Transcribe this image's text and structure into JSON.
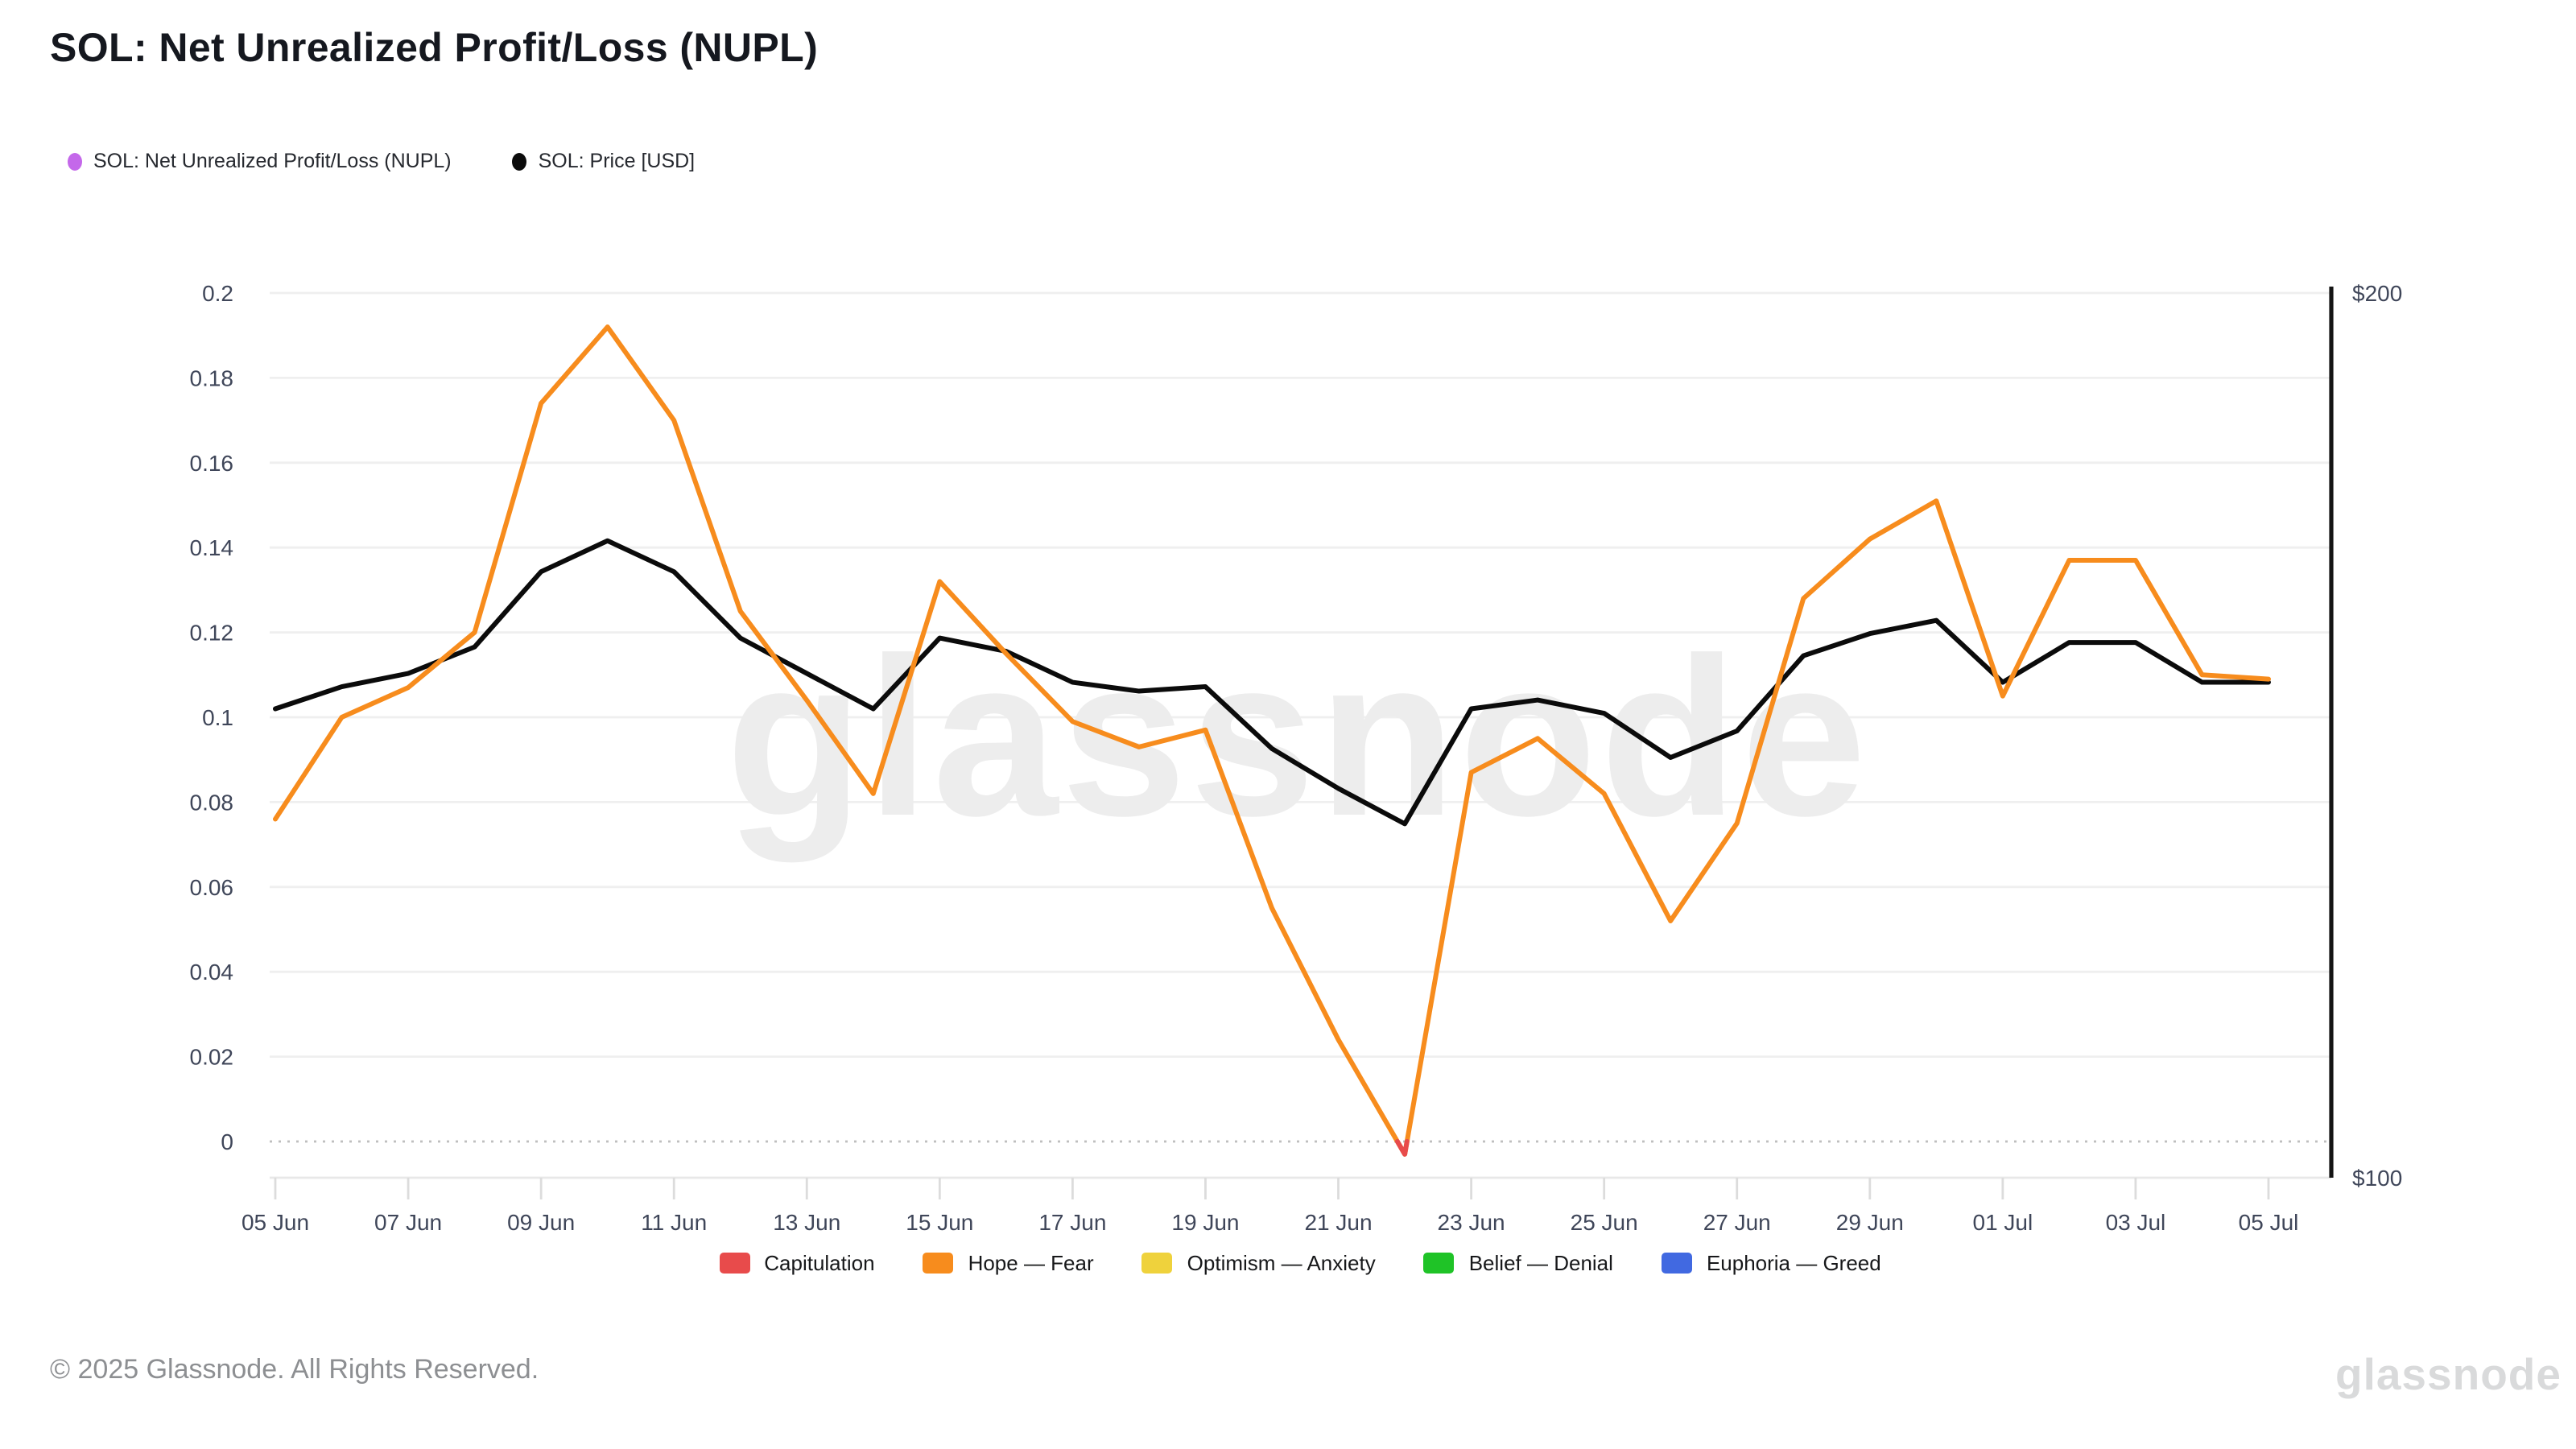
{
  "title": "SOL: Net Unrealized Profit/Loss (NUPL)",
  "top_legend": [
    {
      "label": "SOL: Net Unrealized Profit/Loss (NUPL)",
      "dot_color": "#c468ea"
    },
    {
      "label": "SOL: Price [USD]",
      "dot_color": "#0b0b0b"
    }
  ],
  "zone_legend": [
    {
      "label": "Capitulation",
      "color": "#e84b4b"
    },
    {
      "label": "Hope — Fear",
      "color": "#f78c1d"
    },
    {
      "label": "Optimism — Anxiety",
      "color": "#efd23c"
    },
    {
      "label": "Belief — Denial",
      "color": "#1fc327"
    },
    {
      "label": "Euphoria — Greed",
      "color": "#4169e1"
    }
  ],
  "footer": {
    "copyright": "© 2025 Glassnode. All Rights Reserved.",
    "brand": "glassnode"
  },
  "watermark": "glassnode",
  "chart_data": {
    "type": "line",
    "x": [
      "05 Jun",
      "06 Jun",
      "07 Jun",
      "08 Jun",
      "09 Jun",
      "10 Jun",
      "11 Jun",
      "12 Jun",
      "13 Jun",
      "14 Jun",
      "15 Jun",
      "16 Jun",
      "17 Jun",
      "18 Jun",
      "19 Jun",
      "20 Jun",
      "21 Jun",
      "22 Jun",
      "23 Jun",
      "24 Jun",
      "25 Jun",
      "26 Jun",
      "27 Jun",
      "28 Jun",
      "29 Jun",
      "30 Jun",
      "01 Jul",
      "02 Jul",
      "03 Jul",
      "04 Jul",
      "05 Jul"
    ],
    "x_tick_labels": [
      "05 Jun",
      "07 Jun",
      "09 Jun",
      "11 Jun",
      "13 Jun",
      "15 Jun",
      "17 Jun",
      "19 Jun",
      "21 Jun",
      "23 Jun",
      "25 Jun",
      "27 Jun",
      "29 Jun",
      "01 Jul",
      "03 Jul",
      "05 Jul"
    ],
    "left_axis": {
      "tick_labels": [
        "0.2",
        "0.18",
        "0.16",
        "0.14",
        "0.12",
        "0.1",
        "0.08",
        "0.06",
        "0.04",
        "0.02",
        "0"
      ],
      "tick_values": [
        0.2,
        0.18,
        0.16,
        0.14,
        0.12,
        0.1,
        0.08,
        0.06,
        0.04,
        0.02,
        0
      ],
      "range_top": 0.2,
      "zero_line_style": "dotted",
      "grid": true
    },
    "right_axis": {
      "tick_labels": [
        "$200",
        "$100"
      ],
      "range": [
        100,
        200
      ]
    },
    "series": [
      {
        "name": "SOL: Net Unrealized Profit/Loss (NUPL)",
        "axis": "left",
        "color": "#f78c1d",
        "below_zero_color": "#e84b4b",
        "values": [
          0.076,
          0.1,
          0.107,
          0.12,
          0.174,
          0.192,
          0.17,
          0.125,
          0.104,
          0.082,
          0.132,
          0.115,
          0.099,
          0.093,
          0.097,
          0.055,
          0.024,
          -0.003,
          0.087,
          0.095,
          0.082,
          0.052,
          0.075,
          0.128,
          0.142,
          0.151,
          0.105,
          0.137,
          0.137,
          0.11,
          0.109
        ]
      },
      {
        "name": "SOL: Price [USD]",
        "axis": "right",
        "color": "#0b0b0b",
        "values": [
          153,
          155.5,
          157,
          160,
          168.5,
          172,
          168.5,
          161,
          157,
          153,
          161,
          159.5,
          156,
          155,
          155.5,
          148.5,
          144,
          140,
          153,
          154,
          152.5,
          147.5,
          150.5,
          159,
          161.5,
          163,
          156,
          160.5,
          160.5,
          156,
          156
        ]
      }
    ]
  }
}
